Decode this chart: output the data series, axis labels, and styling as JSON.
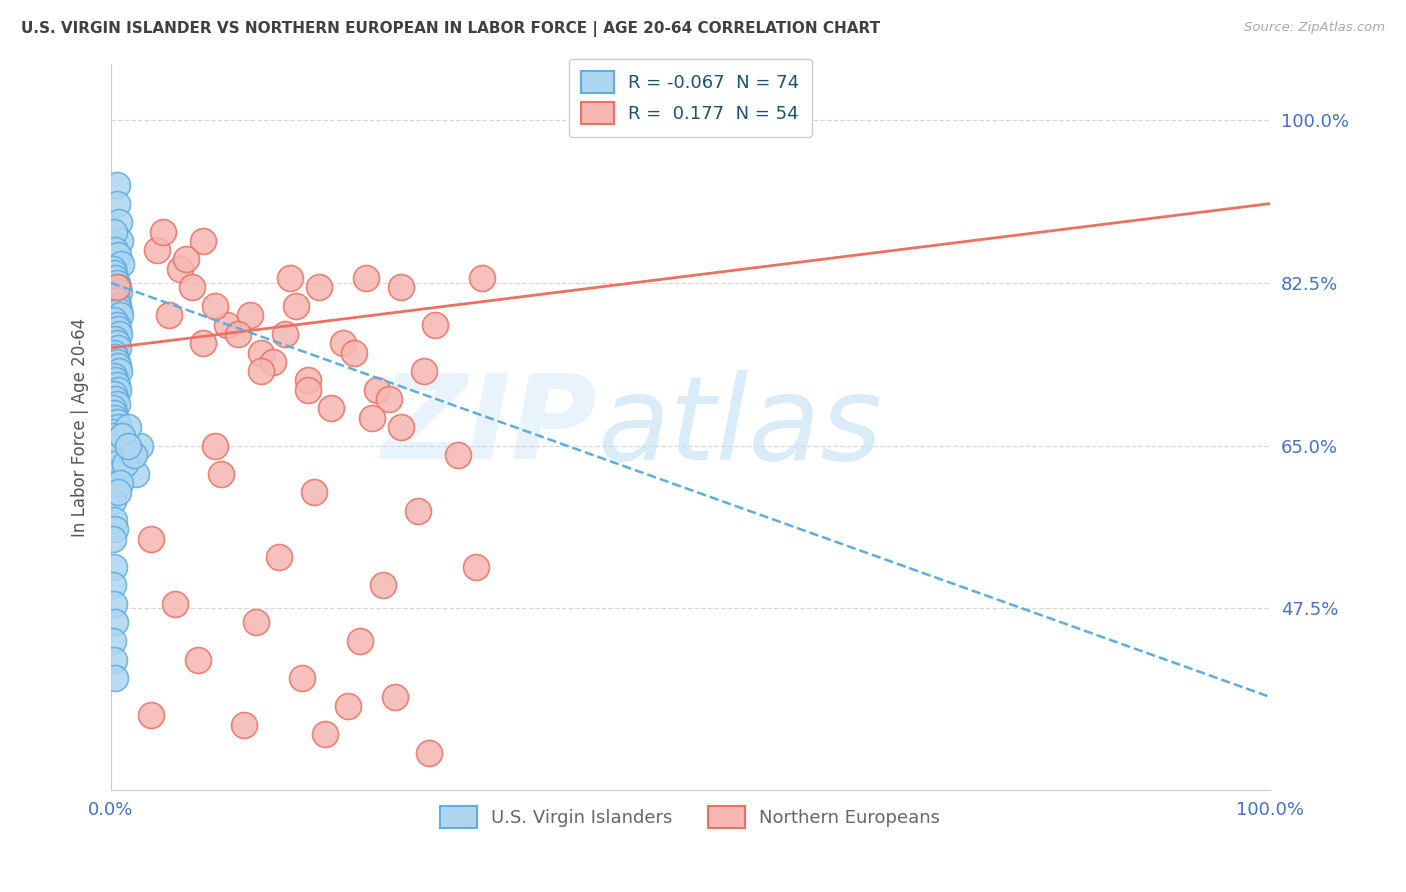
{
  "title": "U.S. VIRGIN ISLANDER VS NORTHERN EUROPEAN IN LABOR FORCE | AGE 20-64 CORRELATION CHART",
  "source": "Source: ZipAtlas.com",
  "ylabel": "In Labor Force | Age 20-64",
  "y_ticks": [
    0.475,
    0.65,
    0.825,
    1.0
  ],
  "y_tick_labels": [
    "47.5%",
    "65.0%",
    "82.5%",
    "100.0%"
  ],
  "x_range": [
    0.0,
    1.0
  ],
  "y_range": [
    0.28,
    1.06
  ],
  "r1": "-0.067",
  "n1": "74",
  "r2": "0.177",
  "n2": "54",
  "series1_label": "U.S. Virgin Islanders",
  "series2_label": "Northern Europeans",
  "series1_face": "#aed6f1",
  "series1_edge": "#5dade2",
  "series2_face": "#f5b7b1",
  "series2_edge": "#ec7063",
  "trend1_color": "#5dade2",
  "trend2_color": "#ec7063",
  "trend1_x": [
    0.0,
    1.0
  ],
  "trend1_y": [
    0.825,
    0.38
  ],
  "trend2_x": [
    0.0,
    1.0
  ],
  "trend2_y": [
    0.755,
    0.91
  ],
  "axis_label_color": "#4472c4",
  "title_color": "#404040",
  "ylabel_color": "#555555",
  "legend_text_color": "#1a5276",
  "grid_color": "#d5d8dc",
  "watermark_zip": "ZIP",
  "watermark_atlas": "atlas",
  "blue_x": [
    0.005,
    0.005,
    0.007,
    0.008,
    0.003,
    0.004,
    0.006,
    0.009,
    0.002,
    0.003,
    0.004,
    0.005,
    0.006,
    0.007,
    0.003,
    0.004,
    0.005,
    0.006,
    0.007,
    0.008,
    0.003,
    0.005,
    0.006,
    0.007,
    0.004,
    0.005,
    0.006,
    0.003,
    0.004,
    0.005,
    0.006,
    0.007,
    0.003,
    0.004,
    0.005,
    0.006,
    0.003,
    0.004,
    0.005,
    0.002,
    0.003,
    0.004,
    0.005,
    0.006,
    0.002,
    0.003,
    0.004,
    0.005,
    0.002,
    0.003,
    0.004,
    0.005,
    0.003,
    0.002,
    0.003,
    0.004,
    0.002,
    0.003,
    0.002,
    0.003,
    0.004,
    0.002,
    0.003,
    0.004,
    0.018,
    0.022,
    0.025,
    0.015,
    0.012,
    0.01,
    0.008,
    0.006,
    0.02,
    0.015
  ],
  "blue_y": [
    0.93,
    0.91,
    0.89,
    0.87,
    0.88,
    0.86,
    0.855,
    0.845,
    0.84,
    0.835,
    0.83,
    0.825,
    0.82,
    0.815,
    0.81,
    0.808,
    0.805,
    0.8,
    0.795,
    0.79,
    0.785,
    0.78,
    0.775,
    0.77,
    0.765,
    0.76,
    0.755,
    0.75,
    0.745,
    0.74,
    0.735,
    0.73,
    0.725,
    0.72,
    0.715,
    0.71,
    0.705,
    0.7,
    0.695,
    0.69,
    0.685,
    0.68,
    0.675,
    0.67,
    0.665,
    0.66,
    0.655,
    0.65,
    0.64,
    0.63,
    0.62,
    0.61,
    0.6,
    0.59,
    0.57,
    0.56,
    0.55,
    0.52,
    0.5,
    0.48,
    0.46,
    0.44,
    0.42,
    0.4,
    0.64,
    0.62,
    0.65,
    0.67,
    0.63,
    0.66,
    0.61,
    0.6,
    0.64,
    0.65
  ],
  "pink_x": [
    0.005,
    0.08,
    0.13,
    0.18,
    0.22,
    0.1,
    0.16,
    0.25,
    0.06,
    0.12,
    0.2,
    0.28,
    0.32,
    0.04,
    0.09,
    0.15,
    0.21,
    0.27,
    0.07,
    0.14,
    0.08,
    0.17,
    0.23,
    0.11,
    0.19,
    0.05,
    0.13,
    0.24,
    0.3,
    0.035,
    0.175,
    0.265,
    0.095,
    0.145,
    0.235,
    0.315,
    0.055,
    0.125,
    0.215,
    0.075,
    0.165,
    0.245,
    0.035,
    0.185,
    0.275,
    0.115,
    0.205,
    0.065,
    0.155,
    0.225,
    0.09,
    0.17,
    0.25,
    0.045
  ],
  "pink_y": [
    0.82,
    0.87,
    0.75,
    0.82,
    0.83,
    0.78,
    0.8,
    0.82,
    0.84,
    0.79,
    0.76,
    0.78,
    0.83,
    0.86,
    0.8,
    0.77,
    0.75,
    0.73,
    0.82,
    0.74,
    0.76,
    0.72,
    0.71,
    0.77,
    0.69,
    0.79,
    0.73,
    0.7,
    0.64,
    0.55,
    0.6,
    0.58,
    0.62,
    0.53,
    0.5,
    0.52,
    0.48,
    0.46,
    0.44,
    0.42,
    0.4,
    0.38,
    0.36,
    0.34,
    0.32,
    0.35,
    0.37,
    0.85,
    0.83,
    0.68,
    0.65,
    0.71,
    0.67,
    0.88
  ]
}
